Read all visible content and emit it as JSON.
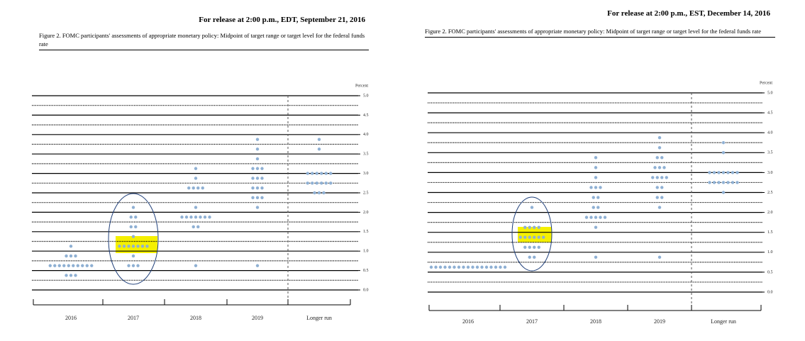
{
  "chart_data": [
    {
      "type": "dot",
      "header": "For release at 2:00 p.m., EDT, September 21, 2016",
      "title": "Figure 2. FOMC participants' assessments of appropriate monetary policy: Midpoint of target range or target level for the federal funds rate",
      "y_label": "Percent",
      "categories": [
        "2016",
        "2017",
        "2018",
        "2019",
        "Longer run"
      ],
      "dots": [
        {
          "levels": [
            1.125,
            0.875,
            0.625,
            0.375
          ],
          "counts": [
            1,
            3,
            10,
            3
          ]
        },
        {
          "levels": [
            2.125,
            1.875,
            1.625,
            1.375,
            1.125,
            0.875,
            0.625
          ],
          "counts": [
            1,
            2,
            2,
            1,
            7,
            1,
            3
          ]
        },
        {
          "levels": [
            3.125,
            2.875,
            2.625,
            2.125,
            1.875,
            1.625,
            0.625
          ],
          "counts": [
            1,
            1,
            4,
            1,
            7,
            2,
            1
          ]
        },
        {
          "levels": [
            3.875,
            3.625,
            3.375,
            3.125,
            2.875,
            2.625,
            2.375,
            2.125,
            0.625
          ],
          "counts": [
            1,
            1,
            1,
            3,
            3,
            3,
            3,
            1,
            1
          ]
        },
        {
          "levels": [
            3.875,
            3.625,
            3.0,
            2.75,
            2.5
          ],
          "counts": [
            1,
            1,
            6,
            6,
            3
          ]
        }
      ],
      "color": "#8fb0d3",
      "ylim": [
        0,
        5
      ],
      "yticks": [
        {
          "value": 0,
          "label": "0.0"
        },
        0.5,
        {
          "value": 1,
          "label": "1.0"
        },
        1.5,
        {
          "value": 2,
          "label": "2.0"
        },
        2.5,
        {
          "value": 3,
          "label": "3.0"
        },
        3.5,
        {
          "value": 4,
          "label": "4.0"
        },
        4.5,
        {
          "value": 5,
          "label": "5.0"
        }
      ],
      "grid": true
    },
    {
      "type": "dot",
      "header": "For release at 2:00 p.m., EST, December 14, 2016",
      "title": "Figure 2. FOMC participants' assessments of appropriate monetary policy: Midpoint of target range or target level for the federal funds rate",
      "y_label": "Percent",
      "categories": [
        "2016",
        "2017",
        "2018",
        "2019",
        "Longer run"
      ],
      "dots": [
        {
          "levels": [
            0.625
          ],
          "counts": [
            17
          ]
        },
        {
          "levels": [
            2.125,
            1.625,
            1.375,
            1.125,
            0.875
          ],
          "counts": [
            1,
            4,
            6,
            4,
            2
          ]
        },
        {
          "levels": [
            3.375,
            3.125,
            2.875,
            2.625,
            2.375,
            2.125,
            1.875,
            1.625,
            0.875
          ],
          "counts": [
            1,
            1,
            1,
            3,
            2,
            2,
            5,
            1,
            1
          ]
        },
        {
          "levels": [
            3.875,
            3.625,
            3.375,
            3.125,
            2.875,
            2.625,
            2.375,
            2.125,
            0.875
          ],
          "counts": [
            1,
            1,
            2,
            3,
            4,
            2,
            2,
            1,
            1
          ]
        },
        {
          "levels": [
            3.75,
            3.5,
            3.0,
            2.75,
            2.5
          ],
          "counts": [
            1,
            1,
            7,
            7,
            1
          ]
        }
      ],
      "color": "#8fb0d3",
      "ylim": [
        0,
        5
      ],
      "yticks": [
        {
          "value": 0,
          "label": "0.0"
        },
        0.5,
        {
          "value": 1,
          "label": "1.0"
        },
        1.5,
        {
          "value": 2,
          "label": "2.0"
        },
        2.5,
        {
          "value": 3,
          "label": "3.0"
        },
        3.5,
        {
          "value": 4,
          "label": "4.0"
        },
        4.5,
        {
          "value": 5,
          "label": "5.0"
        }
      ],
      "grid": true
    }
  ]
}
